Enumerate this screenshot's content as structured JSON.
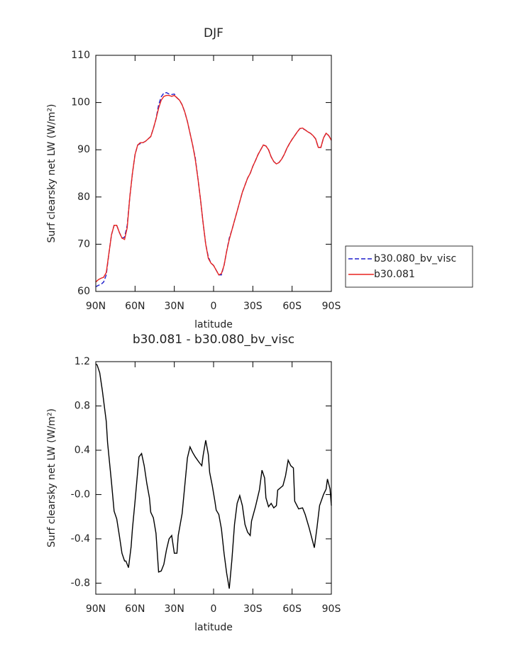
{
  "chart_data": [
    {
      "type": "line",
      "title": "DJF",
      "xlabel": "latitude",
      "ylabel": "Surf clearsky net LW (W/m²)",
      "x": [
        90,
        88,
        86,
        84,
        82,
        80,
        78,
        76,
        74,
        72,
        70,
        68,
        66,
        64,
        62,
        60,
        58,
        56,
        54,
        52,
        50,
        48,
        46,
        44,
        42,
        40,
        38,
        36,
        34,
        32,
        30,
        28,
        26,
        24,
        22,
        20,
        18,
        16,
        14,
        12,
        10,
        8,
        6,
        4,
        2,
        0,
        -2,
        -4,
        -6,
        -8,
        -10,
        -12,
        -14,
        -16,
        -18,
        -20,
        -22,
        -24,
        -26,
        -28,
        -30,
        -32,
        -34,
        -36,
        -38,
        -40,
        -42,
        -44,
        -46,
        -48,
        -50,
        -52,
        -54,
        -56,
        -58,
        -60,
        -62,
        -64,
        -66,
        -68,
        -70,
        -72,
        -74,
        -76,
        -78,
        -80,
        -82,
        -84,
        -86,
        -88,
        -90
      ],
      "series": [
        {
          "name": "b30.080_bv_visc",
          "color": "#1f1fcc",
          "line_style": "dashed",
          "values": [
            61,
            61.3,
            61.5,
            62,
            63.5,
            68,
            72,
            74,
            74,
            72.5,
            71.3,
            71.5,
            74,
            80,
            85,
            89,
            91,
            91.3,
            91.5,
            91.8,
            92.3,
            92.8,
            94.5,
            96.5,
            99.5,
            101.2,
            102,
            102.1,
            101.8,
            101.7,
            101.8,
            101,
            100.5,
            99.5,
            98,
            96,
            93.5,
            91,
            88.3,
            84,
            79.5,
            74.5,
            70,
            67.3,
            66,
            65.5,
            64.5,
            63.5,
            63.5,
            65.5,
            68.5,
            71.3,
            73,
            75,
            77,
            79,
            81,
            82.5,
            84,
            85,
            86.5,
            87.7,
            89,
            90,
            91,
            90.8,
            90,
            88.5,
            87.5,
            87,
            87.3,
            88,
            89,
            90.3,
            91.3,
            92.2,
            93,
            93.8,
            94.5,
            94.5,
            94.2,
            93.8,
            93.5,
            93,
            92.3,
            90.5,
            90.5,
            92.5,
            93.5,
            93,
            92
          ]
        },
        {
          "name": "b30.081",
          "color": "#e8231e",
          "line_style": "solid",
          "values": [
            62,
            62.5,
            62.8,
            63,
            64,
            68,
            72,
            74,
            74,
            72.5,
            71.3,
            71,
            73.5,
            80,
            85,
            89,
            91,
            91.5,
            91.5,
            91.8,
            92.3,
            92.8,
            94.5,
            96.5,
            98.8,
            100.5,
            101.3,
            101.5,
            101.5,
            101.3,
            101.5,
            101,
            100.5,
            99.5,
            98,
            96,
            93.5,
            91,
            88,
            84,
            79.5,
            74.5,
            70,
            67,
            66,
            65.5,
            64.5,
            63.5,
            63.8,
            65.5,
            68.5,
            71,
            73,
            75,
            77,
            79,
            81,
            82.5,
            84,
            85,
            86.5,
            87.7,
            89,
            90,
            91,
            90.8,
            90,
            88.5,
            87.5,
            87,
            87.3,
            88,
            89,
            90.3,
            91.3,
            92.2,
            93,
            93.8,
            94.5,
            94.6,
            94.2,
            93.8,
            93.5,
            93,
            92.3,
            90.5,
            90.5,
            92.5,
            93.5,
            93,
            92
          ]
        }
      ],
      "xlim": [
        90,
        -90
      ],
      "xticks": [
        {
          "value": 90,
          "label": "90N"
        },
        {
          "value": 60,
          "label": "60N"
        },
        {
          "value": 30,
          "label": "30N"
        },
        0,
        {
          "value": -30,
          "label": "30S"
        },
        {
          "value": -60,
          "label": "60S"
        },
        {
          "value": -90,
          "label": "90S"
        }
      ],
      "ylim": [
        60,
        110
      ],
      "yticks": [
        60,
        70,
        80,
        90,
        100,
        110
      ],
      "legend": "right"
    },
    {
      "type": "line",
      "title": "b30.081 - b30.080_bv_visc",
      "xlabel": "latitude",
      "ylabel": "Surf clearsky net LW (W/m²)",
      "x": [
        90,
        89,
        87,
        85,
        82,
        81,
        79,
        78,
        76,
        74,
        72,
        70,
        68,
        67,
        65,
        63,
        62,
        60,
        57,
        55,
        53,
        51,
        49,
        48,
        46,
        44,
        42,
        40,
        38,
        36,
        34,
        32,
        30,
        28,
        27,
        24,
        22,
        20,
        18,
        16,
        14,
        11,
        9,
        8,
        6,
        4,
        3,
        1,
        -1,
        -2,
        -4,
        -6,
        -8,
        -10,
        -12,
        -14,
        -16,
        -18,
        -20,
        -22,
        -24,
        -26,
        -28,
        -29,
        -32,
        -33,
        -35,
        -37,
        -39,
        -40,
        -42,
        -44,
        -46,
        -48,
        -49,
        -52,
        -53,
        -55,
        -57,
        -59,
        -61,
        -62,
        -65,
        -68,
        -70,
        -73,
        -77,
        -79,
        -81,
        -84,
        -86,
        -87,
        -89,
        -90
      ],
      "series": [
        {
          "name": "b30.081 - b30.080_bv_visc",
          "color": "#000000",
          "line_style": "solid",
          "values": [
            1.18,
            1.17,
            1.1,
            0.94,
            0.66,
            0.47,
            0.23,
            0.11,
            -0.15,
            -0.22,
            -0.37,
            -0.53,
            -0.6,
            -0.6,
            -0.66,
            -0.47,
            -0.31,
            -0.06,
            0.34,
            0.37,
            0.26,
            0.1,
            -0.03,
            -0.16,
            -0.21,
            -0.35,
            -0.7,
            -0.69,
            -0.63,
            -0.5,
            -0.4,
            -0.37,
            -0.53,
            -0.53,
            -0.37,
            -0.17,
            0.08,
            0.33,
            0.43,
            0.38,
            0.34,
            0.29,
            0.26,
            0.35,
            0.49,
            0.36,
            0.2,
            0.08,
            -0.06,
            -0.14,
            -0.18,
            -0.31,
            -0.53,
            -0.71,
            -0.85,
            -0.59,
            -0.27,
            -0.08,
            -0.01,
            -0.1,
            -0.27,
            -0.34,
            -0.37,
            -0.24,
            -0.11,
            -0.06,
            0.04,
            0.22,
            0.15,
            -0.03,
            -0.11,
            -0.08,
            -0.12,
            -0.1,
            0.04,
            0.07,
            0.08,
            0.17,
            0.31,
            0.26,
            0.24,
            -0.06,
            -0.13,
            -0.12,
            -0.18,
            -0.3,
            -0.48,
            -0.3,
            -0.1,
            0,
            0.05,
            0.14,
            0.05,
            -0.1
          ]
        }
      ],
      "xlim": [
        90,
        -90
      ],
      "xticks": [
        {
          "value": 90,
          "label": "90N"
        },
        {
          "value": 60,
          "label": "60N"
        },
        {
          "value": 30,
          "label": "30N"
        },
        0,
        {
          "value": -30,
          "label": "30S"
        },
        {
          "value": -60,
          "label": "60S"
        },
        {
          "value": -90,
          "label": "90S"
        }
      ],
      "ylim": [
        -0.9,
        1.2
      ],
      "yticks": [
        -0.8,
        -0.4,
        {
          "value": 0,
          "label": "-0.0"
        },
        0.4,
        0.8,
        1.2
      ]
    }
  ]
}
